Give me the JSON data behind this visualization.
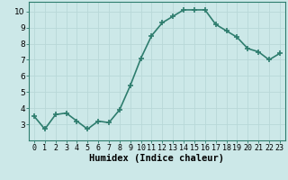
{
  "x": [
    0,
    1,
    2,
    3,
    4,
    5,
    6,
    7,
    8,
    9,
    10,
    11,
    12,
    13,
    14,
    15,
    16,
    17,
    18,
    19,
    20,
    21,
    22,
    23
  ],
  "y": [
    3.5,
    2.7,
    3.6,
    3.7,
    3.2,
    2.7,
    3.2,
    3.1,
    3.9,
    5.4,
    7.1,
    8.5,
    9.3,
    9.7,
    10.1,
    10.1,
    10.1,
    9.2,
    8.8,
    8.4,
    7.7,
    7.5,
    7.0,
    7.4
  ],
  "line_color": "#2e7d6e",
  "marker": "+",
  "marker_size": 4,
  "bg_color": "#cce8e8",
  "grid_color": "#b8d8d8",
  "xlabel": "Humidex (Indice chaleur)",
  "xlim": [
    -0.5,
    23.5
  ],
  "ylim": [
    2.0,
    10.6
  ],
  "yticks": [
    3,
    4,
    5,
    6,
    7,
    8,
    9,
    10
  ],
  "xticks": [
    0,
    1,
    2,
    3,
    4,
    5,
    6,
    7,
    8,
    9,
    10,
    11,
    12,
    13,
    14,
    15,
    16,
    17,
    18,
    19,
    20,
    21,
    22,
    23
  ],
  "tick_label_size": 6,
  "xlabel_size": 7.5,
  "line_width": 1.2
}
